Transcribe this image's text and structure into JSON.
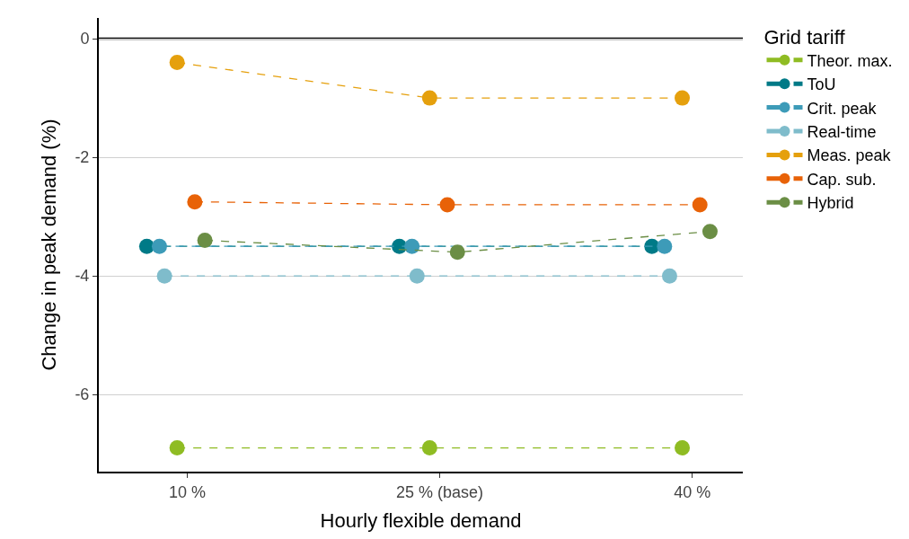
{
  "chart_data": {
    "type": "line",
    "xlabel": "Hourly flexible demand",
    "ylabel": "Change in peak demand (%)",
    "legend_title": "Grid tariff",
    "categories": [
      "10 %",
      "25 % (base)",
      "40 %"
    ],
    "series": [
      {
        "name": "Theor. max.",
        "color": "#8fbc23",
        "values": [
          -6.9,
          -6.9,
          -6.9
        ]
      },
      {
        "name": "ToU",
        "color": "#007a87",
        "values": [
          -3.5,
          -3.5,
          -3.5
        ]
      },
      {
        "name": "Crit. peak",
        "color": "#3d9bb8",
        "values": [
          -3.5,
          -3.5,
          -3.5
        ]
      },
      {
        "name": "Real-time",
        "color": "#7fbccb",
        "values": [
          -4.0,
          -4.0,
          -4.0
        ]
      },
      {
        "name": "Meas. peak",
        "color": "#e5a00d",
        "values": [
          -0.4,
          -1.0,
          -1.0
        ]
      },
      {
        "name": "Cap. sub.",
        "color": "#e86207",
        "values": [
          -2.75,
          -2.8,
          -2.8
        ]
      },
      {
        "name": "Hybrid",
        "color": "#6b8e45",
        "values": [
          -3.4,
          -3.6,
          -3.25
        ]
      }
    ],
    "ylim": [
      -7.3,
      0.35
    ],
    "yticks": [
      0,
      -2,
      -4,
      -6
    ],
    "grid": "y",
    "legend": "right",
    "marker": "circle",
    "line_style": "dashed",
    "ref_lines": [
      {
        "axis": "y",
        "value": 0,
        "color": "#000000",
        "line_style": "solid"
      }
    ]
  }
}
